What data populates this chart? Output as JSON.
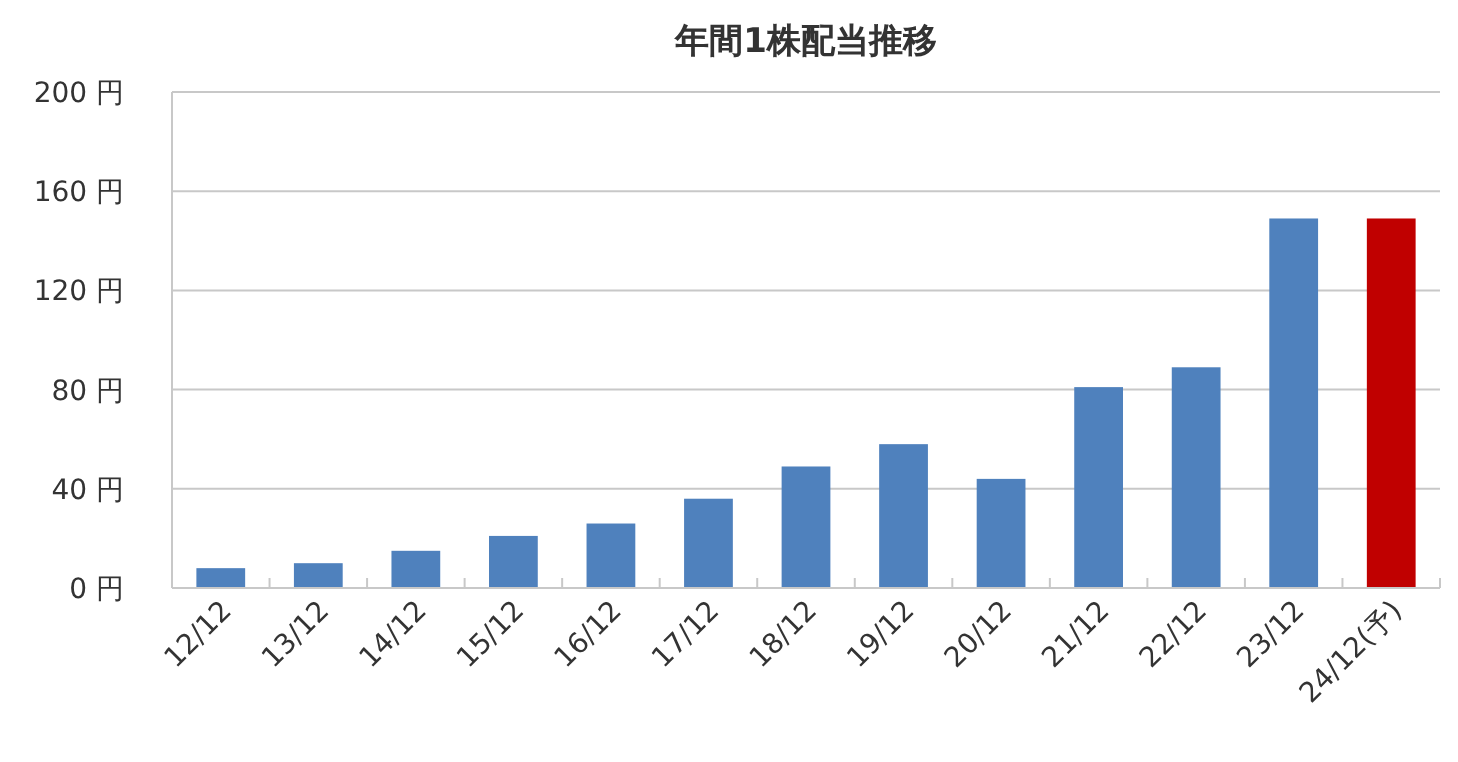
{
  "chart_data": {
    "type": "bar",
    "title": "年間1株配当推移",
    "categories": [
      "12/12",
      "13/12",
      "14/12",
      "15/12",
      "16/12",
      "17/12",
      "18/12",
      "19/12",
      "20/12",
      "21/12",
      "22/12",
      "23/12",
      "24/12(予)"
    ],
    "values": [
      8,
      10,
      15,
      21,
      26,
      36,
      49,
      58,
      44,
      81,
      89,
      149,
      149
    ],
    "colors": [
      "#4f81bd",
      "#4f81bd",
      "#4f81bd",
      "#4f81bd",
      "#4f81bd",
      "#4f81bd",
      "#4f81bd",
      "#4f81bd",
      "#4f81bd",
      "#4f81bd",
      "#4f81bd",
      "#4f81bd",
      "#c00000"
    ],
    "ylim": [
      0,
      200
    ],
    "yticks": [
      {
        "value": 0,
        "label": "0 円"
      },
      {
        "value": 40,
        "label": "40 円"
      },
      {
        "value": 80,
        "label": "80 円"
      },
      {
        "value": 120,
        "label": "120 円"
      },
      {
        "value": 160,
        "label": "160 円"
      },
      {
        "value": 200,
        "label": "200 円"
      }
    ],
    "grid": "y"
  }
}
